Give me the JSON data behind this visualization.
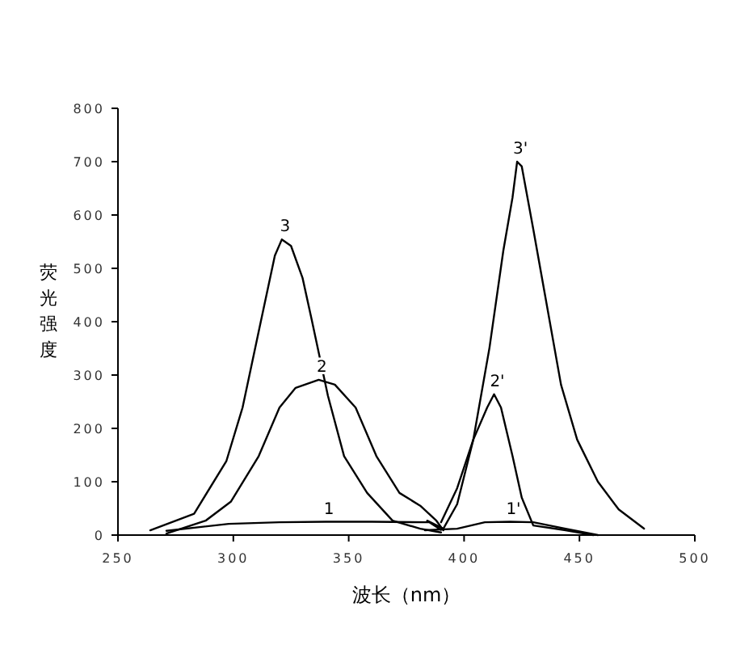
{
  "chart_data": {
    "type": "line",
    "xlabel": "波长（nm）",
    "ylabel": "荧光强度",
    "xlim": [
      250,
      500
    ],
    "ylim": [
      0,
      800
    ],
    "xticks": [
      250,
      300,
      350,
      400,
      450,
      500
    ],
    "yticks": [
      0,
      100,
      200,
      300,
      400,
      500,
      600,
      700,
      800
    ],
    "grid": false,
    "marker": "none",
    "line_style": "solid",
    "series": [
      {
        "name": "3",
        "color": "#000000",
        "x": [
          264,
          283,
          297,
          304,
          311,
          318,
          321,
          325,
          330,
          334,
          341,
          348,
          358,
          369,
          381,
          390
        ],
        "values": [
          9,
          40,
          139,
          239,
          382,
          524,
          554,
          542,
          482,
          403,
          261,
          148,
          79,
          27,
          12,
          5
        ]
      },
      {
        "name": "2",
        "color": "#000000",
        "x": [
          271,
          288,
          299,
          311,
          320,
          327,
          337,
          344,
          353,
          362,
          372,
          381,
          388,
          391
        ],
        "values": [
          3,
          27,
          63,
          148,
          239,
          276,
          291,
          282,
          239,
          148,
          79,
          55,
          27,
          9
        ]
      },
      {
        "name": "1",
        "color": "#000000",
        "x": [
          271,
          298,
          320,
          340,
          360,
          385,
          390
        ],
        "values": [
          8,
          21,
          24,
          25,
          25,
          24,
          10
        ]
      },
      {
        "name": "3'",
        "color": "#000000",
        "x": [
          384,
          391,
          397,
          404,
          411,
          417,
          421,
          423,
          425,
          430,
          435,
          442,
          449,
          458,
          467,
          478
        ],
        "values": [
          27,
          12,
          58,
          179,
          351,
          533,
          633,
          700,
          691,
          573,
          452,
          282,
          179,
          100,
          48,
          12
        ]
      },
      {
        "name": "2'",
        "color": "#000000",
        "x": [
          390,
          397,
          404,
          410,
          413,
          416,
          421,
          425,
          430,
          444,
          456
        ],
        "values": [
          24,
          88,
          179,
          239,
          264,
          239,
          148,
          70,
          18,
          9,
          0
        ]
      },
      {
        "name": "1'",
        "color": "#000000",
        "x": [
          383,
          397,
          409,
          420,
          430,
          444,
          458
        ],
        "values": [
          9,
          12,
          24,
          25,
          24,
          12,
          0
        ]
      }
    ]
  }
}
